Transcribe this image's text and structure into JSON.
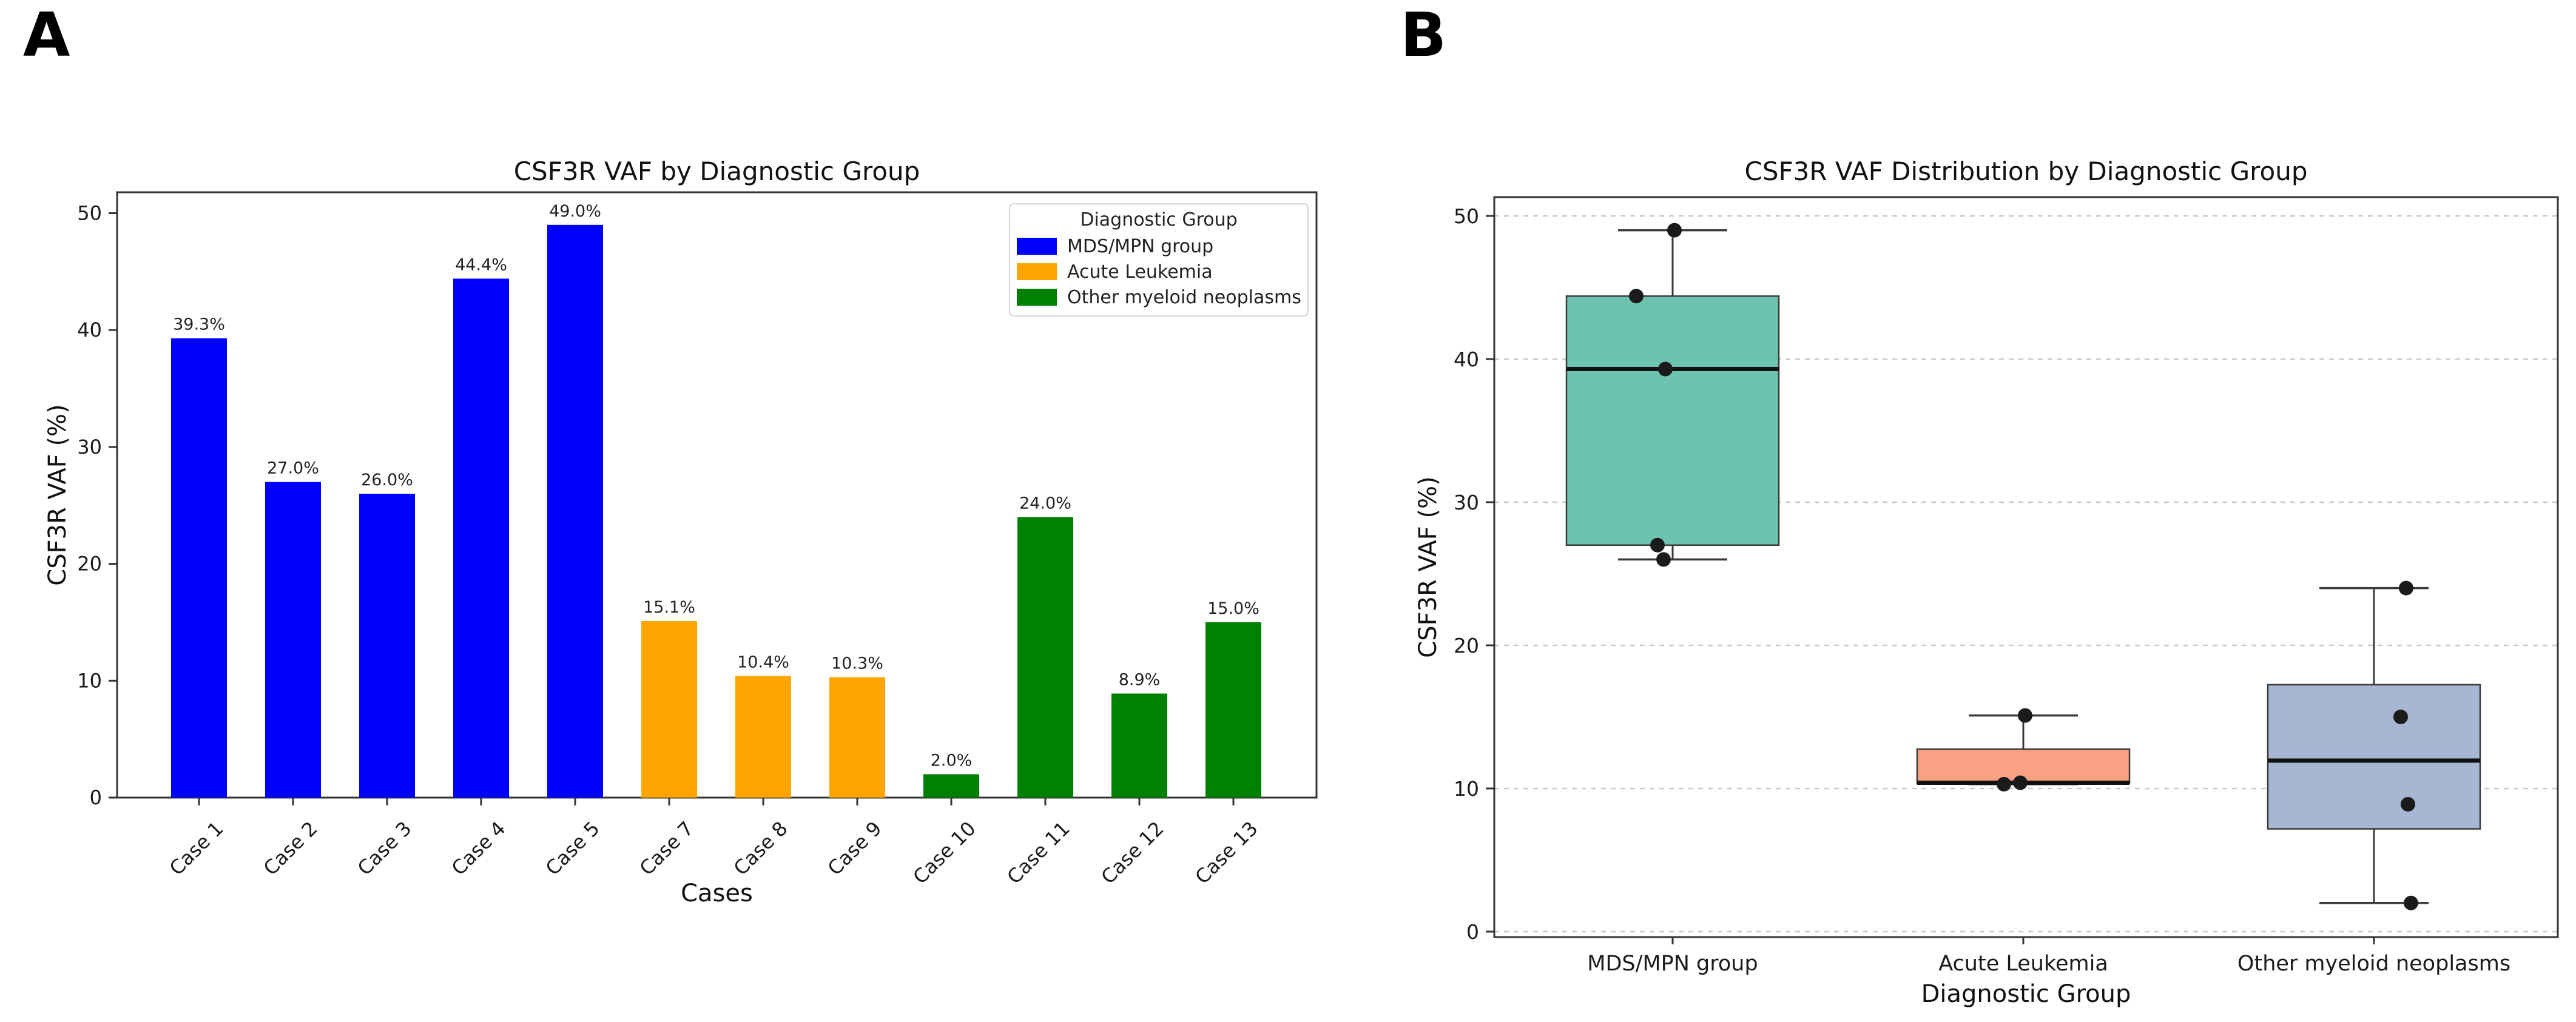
{
  "figure": {
    "background": "#ffffff",
    "text_color": "#1a1a1a",
    "spine_color": "#333333",
    "grid_color": "#c9c9c9"
  },
  "panels": {
    "a": {
      "label": "A",
      "title": "CSF3R VAF by Diagnostic Group",
      "xlabel": "Cases",
      "ylabel": "CSF3R VAF (%)",
      "legend": {
        "title": "Diagnostic Group",
        "items": [
          {
            "label": "MDS/MPN group",
            "color": "#0000ff"
          },
          {
            "label": "Acute Leukemia",
            "color": "#ffa500"
          },
          {
            "label": "Other myeloid neoplasms",
            "color": "#008000"
          }
        ]
      }
    },
    "b": {
      "label": "B",
      "title": "CSF3R VAF Distribution by Diagnostic Group",
      "xlabel": "Diagnostic Group",
      "ylabel": "CSF3R VAF (%)"
    }
  },
  "chart_data": [
    {
      "type": "bar",
      "panel": "a",
      "title": "CSF3R VAF by Diagnostic Group",
      "xlabel": "Cases",
      "ylabel": "CSF3R VAF (%)",
      "categories": [
        "Case 1",
        "Case 2",
        "Case 3",
        "Case 4",
        "Case 5",
        "Case 7",
        "Case 8",
        "Case 9",
        "Case 10",
        "Case 11",
        "Case 12",
        "Case 13"
      ],
      "values": [
        39.3,
        27.0,
        26.0,
        44.4,
        49.0,
        15.1,
        10.4,
        10.3,
        2.0,
        24.0,
        8.9,
        15.0
      ],
      "bar_labels": [
        "39.3%",
        "27.0%",
        "26.0%",
        "44.4%",
        "49.0%",
        "15.1%",
        "10.4%",
        "10.3%",
        "2.0%",
        "24.0%",
        "8.9%",
        "15.0%"
      ],
      "groups": [
        "MDS/MPN group",
        "MDS/MPN group",
        "MDS/MPN group",
        "MDS/MPN group",
        "MDS/MPN group",
        "Acute Leukemia",
        "Acute Leukemia",
        "Acute Leukemia",
        "Other myeloid neoplasms",
        "Other myeloid neoplasms",
        "Other myeloid neoplasms",
        "Other myeloid neoplasms"
      ],
      "bar_colors": [
        "#0000ff",
        "#0000ff",
        "#0000ff",
        "#0000ff",
        "#0000ff",
        "#ffa500",
        "#ffa500",
        "#ffa500",
        "#008000",
        "#008000",
        "#008000",
        "#008000"
      ],
      "yticks": [
        0,
        10,
        20,
        30,
        40,
        50
      ],
      "ylim": [
        0,
        51.8
      ],
      "grid": false,
      "legend_position": "upper right",
      "xticklabel_rotation": 45
    },
    {
      "type": "box",
      "panel": "b",
      "title": "CSF3R VAF Distribution by Diagnostic Group",
      "xlabel": "Diagnostic Group",
      "ylabel": "CSF3R VAF (%)",
      "categories": [
        "MDS/MPN group",
        "Acute Leukemia",
        "Other myeloid neoplasms"
      ],
      "box_colors": [
        "#6ec3b0",
        "#fba183",
        "#a6b6d3"
      ],
      "points": [
        [
          49.0,
          44.4,
          39.3,
          27.0,
          26.0
        ],
        [
          15.1,
          10.4,
          10.3
        ],
        [
          24.0,
          15.0,
          8.9,
          2.0
        ]
      ],
      "stats": [
        {
          "whisker_low": 26.0,
          "q1": 27.0,
          "median": 39.3,
          "q3": 44.4,
          "whisker_high": 49.0
        },
        {
          "whisker_low": 10.3,
          "q1": 10.35,
          "median": 10.4,
          "q3": 12.75,
          "whisker_high": 15.1
        },
        {
          "whisker_low": 2.0,
          "q1": 7.18,
          "median": 11.95,
          "q3": 17.25,
          "whisker_high": 24.0
        }
      ],
      "yticks": [
        0,
        10,
        20,
        30,
        40,
        50
      ],
      "ylim": [
        -0.4,
        51.3
      ],
      "grid": "dashed-horizontal",
      "point_color": "#1b1b1b"
    }
  ]
}
